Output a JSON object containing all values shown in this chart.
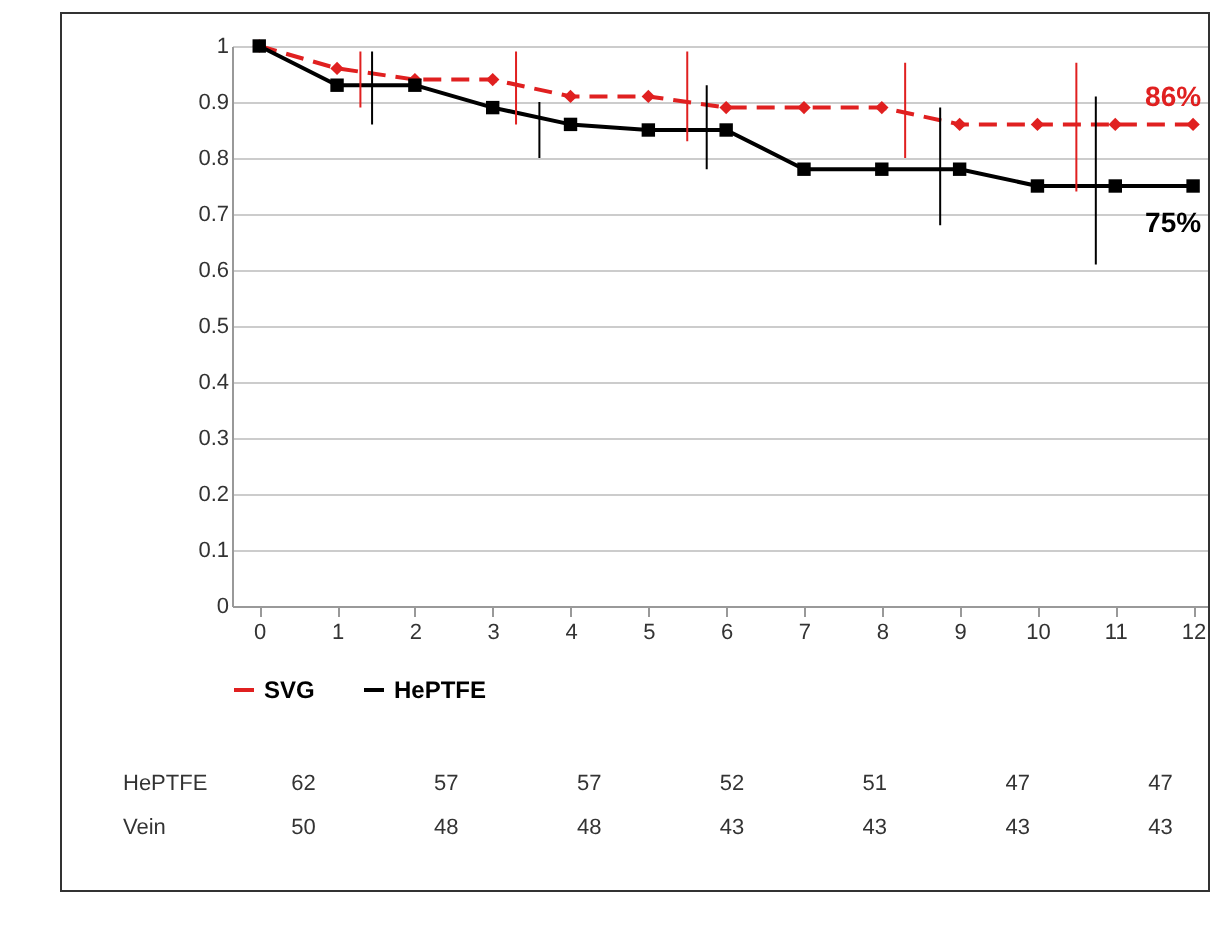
{
  "chart_data": [
    {
      "type": "line",
      "x": [
        0,
        1,
        2,
        3,
        4,
        5,
        6,
        7,
        8,
        9,
        10,
        11,
        12
      ],
      "xlim": [
        -0.35,
        12.5
      ],
      "xticks": [
        0,
        1,
        2,
        3,
        4,
        5,
        6,
        7,
        8,
        9,
        10,
        11,
        12
      ],
      "ylim": [
        0,
        1
      ],
      "yticks": [
        0,
        0.1,
        0.2,
        0.3,
        0.4,
        0.5,
        0.6,
        0.7,
        0.8,
        0.9,
        1
      ],
      "grid": "y",
      "legend": "bottom",
      "series": [
        {
          "name": "SVG",
          "color": "#e02020",
          "marker": "diamond",
          "line_style": "dashed",
          "values": [
            1,
            0.96,
            0.94,
            0.94,
            0.91,
            0.91,
            0.89,
            0.89,
            0.89,
            0.86,
            0.86,
            0.86,
            0.86
          ]
        },
        {
          "name": "HePTFE",
          "color": "#000000",
          "marker": "square",
          "line_style": "solid",
          "values": [
            1,
            0.93,
            0.93,
            0.89,
            0.86,
            0.85,
            0.85,
            0.78,
            0.78,
            0.78,
            0.75,
            0.75,
            0.75
          ]
        },
        {
          "color": "#e02020",
          "marker": "none",
          "line_style": "solid",
          "x": [
            1.3,
            1.3,
            null,
            3.3,
            3.3,
            null,
            5.5,
            5.5,
            null,
            8.3,
            8.3,
            null,
            10.5,
            10.5
          ],
          "values": [
            0.89,
            0.99,
            null,
            0.86,
            0.99,
            null,
            0.83,
            0.99,
            null,
            0.8,
            0.97,
            null,
            0.74,
            0.97
          ]
        },
        {
          "color": "#000000",
          "marker": "none",
          "line_style": "solid",
          "x": [
            1.45,
            1.45,
            null,
            3.6,
            3.6,
            null,
            5.75,
            5.75,
            null,
            8.75,
            8.75,
            null,
            10.75,
            10.75
          ],
          "values": [
            0.86,
            0.99,
            null,
            0.8,
            0.9,
            null,
            0.78,
            0.93,
            null,
            0.68,
            0.89,
            null,
            0.61,
            0.91
          ]
        }
      ],
      "annotations": [
        {
          "text": "86%",
          "x": 12,
          "y": 0.86
        },
        {
          "text": "75%",
          "x": 12,
          "y": 0.75
        }
      ]
    },
    {
      "type": "heatmap",
      "data_labels": true,
      "categories": [
        null,
        null,
        null,
        null,
        null,
        null,
        null
      ],
      "y_categories": [
        "HePTFE",
        "Vein"
      ],
      "cells": [
        [
          62,
          57,
          57,
          52,
          51,
          47,
          47
        ],
        [
          50,
          48,
          48,
          43,
          43,
          43,
          43
        ]
      ]
    }
  ]
}
